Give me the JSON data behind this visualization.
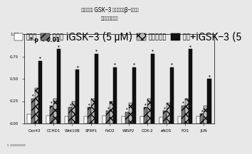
{
  "title_line1": "在机药存在下 GSK-3 抑制剂激发对β-联蛋白靶",
  "title_line2": "基因表达的协同反应",
  "categories": [
    "Cxn43",
    "CCHD1",
    "Wnt10B",
    "SFRP1",
    "FzD2",
    "WISP2",
    "COX-2",
    "eNOS",
    "FOS",
    "JUN"
  ],
  "legend_labels": [
    "无应变",
    "单核的 iGSK-3 (5 μM)",
    "单核的应变",
    "应变+iGSK-3 (5"
  ],
  "footnote": "注：每个实验做六次重复实验的结果",
  "annotation": "* p < 0.01",
  "bar1_values": [
    0.1,
    0.09,
    0.08,
    0.08,
    0.09,
    0.08,
    0.08,
    0.07,
    0.08,
    0.08
  ],
  "bar2_values": [
    0.28,
    0.2,
    0.18,
    0.18,
    0.14,
    0.13,
    0.18,
    0.14,
    0.2,
    0.11
  ],
  "bar3_values": [
    0.4,
    0.28,
    0.25,
    0.28,
    0.25,
    0.23,
    0.28,
    0.23,
    0.28,
    0.2
  ],
  "bar4_values": [
    0.7,
    0.83,
    0.6,
    0.78,
    0.63,
    0.63,
    0.78,
    0.63,
    0.83,
    0.5
  ],
  "bar1_color": "#ffffff",
  "bar2_color": "#777777",
  "bar3_color": "#bbbbbb",
  "bar4_color": "#111111",
  "bar2_hatch": "///",
  "bar3_hatch": "xxx",
  "bar4_hatch": "",
  "ylim": [
    0,
    1.0
  ],
  "ytick_values": [
    0.0,
    0.25,
    0.5,
    0.75,
    1.0
  ],
  "ytick_labels": [
    "0.00",
    "0.25",
    "0.50",
    "0.75",
    "1.00"
  ],
  "background_color": "#e8e8e8",
  "title_fontsize": 5.5,
  "tick_fontsize": 4.0,
  "legend_fontsize": 3.8,
  "annot_fontsize": 5.5,
  "footnote_fontsize": 3.0
}
